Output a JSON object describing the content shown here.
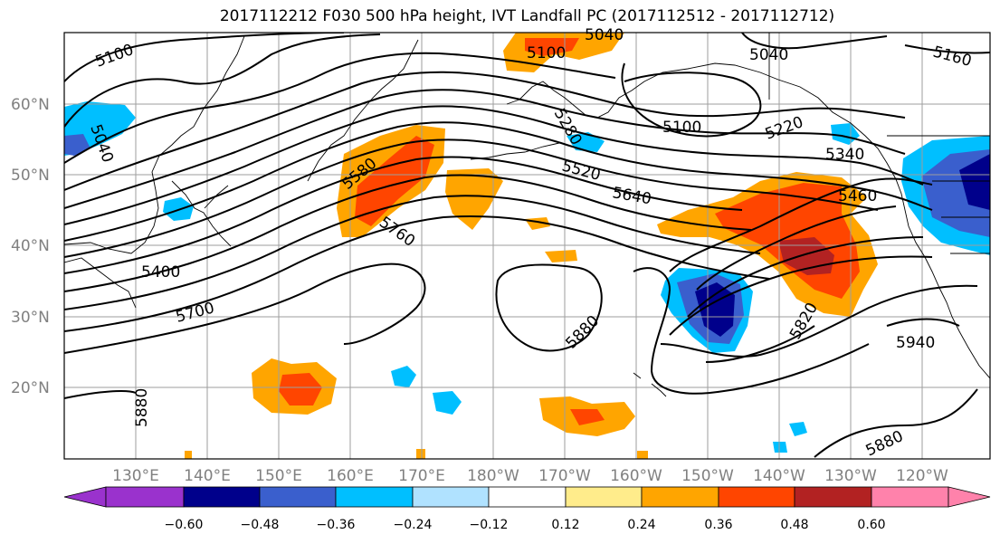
{
  "title": "2017112212 F030 500 hPa height, IVT Landfall PC (2017112512 - 2017112712)",
  "lat_labels": [
    "60°N",
    "50°N",
    "40°N",
    "30°N",
    "20°N"
  ],
  "lon_labels": [
    "130°E",
    "140°E",
    "150°E",
    "160°E",
    "170°E",
    "180°W",
    "170°W",
    "160°W",
    "150°W",
    "140°W",
    "130°W",
    "120°W"
  ],
  "contour_labels": [
    "5100",
    "5040",
    "5100",
    "5040",
    "5040",
    "5160",
    "5100",
    "5280",
    "5220",
    "5340",
    "5520",
    "5460",
    "5580",
    "5640",
    "5760",
    "5400",
    "5700",
    "5880",
    "5820",
    "5940",
    "5880",
    "5880"
  ],
  "colorbar": {
    "ticks": [
      "−0.60",
      "−0.48",
      "−0.36",
      "−0.24",
      "−0.12",
      "0.12",
      "0.24",
      "0.36",
      "0.48",
      "0.60"
    ],
    "colors": [
      "#9a32cd",
      "#00008b",
      "#3a5fcd",
      "#00bfff",
      "#b0e2ff",
      "#ffffff",
      "#ffec8b",
      "#ffa500",
      "#ff4500",
      "#b22222",
      "#ff82ab"
    ]
  }
}
